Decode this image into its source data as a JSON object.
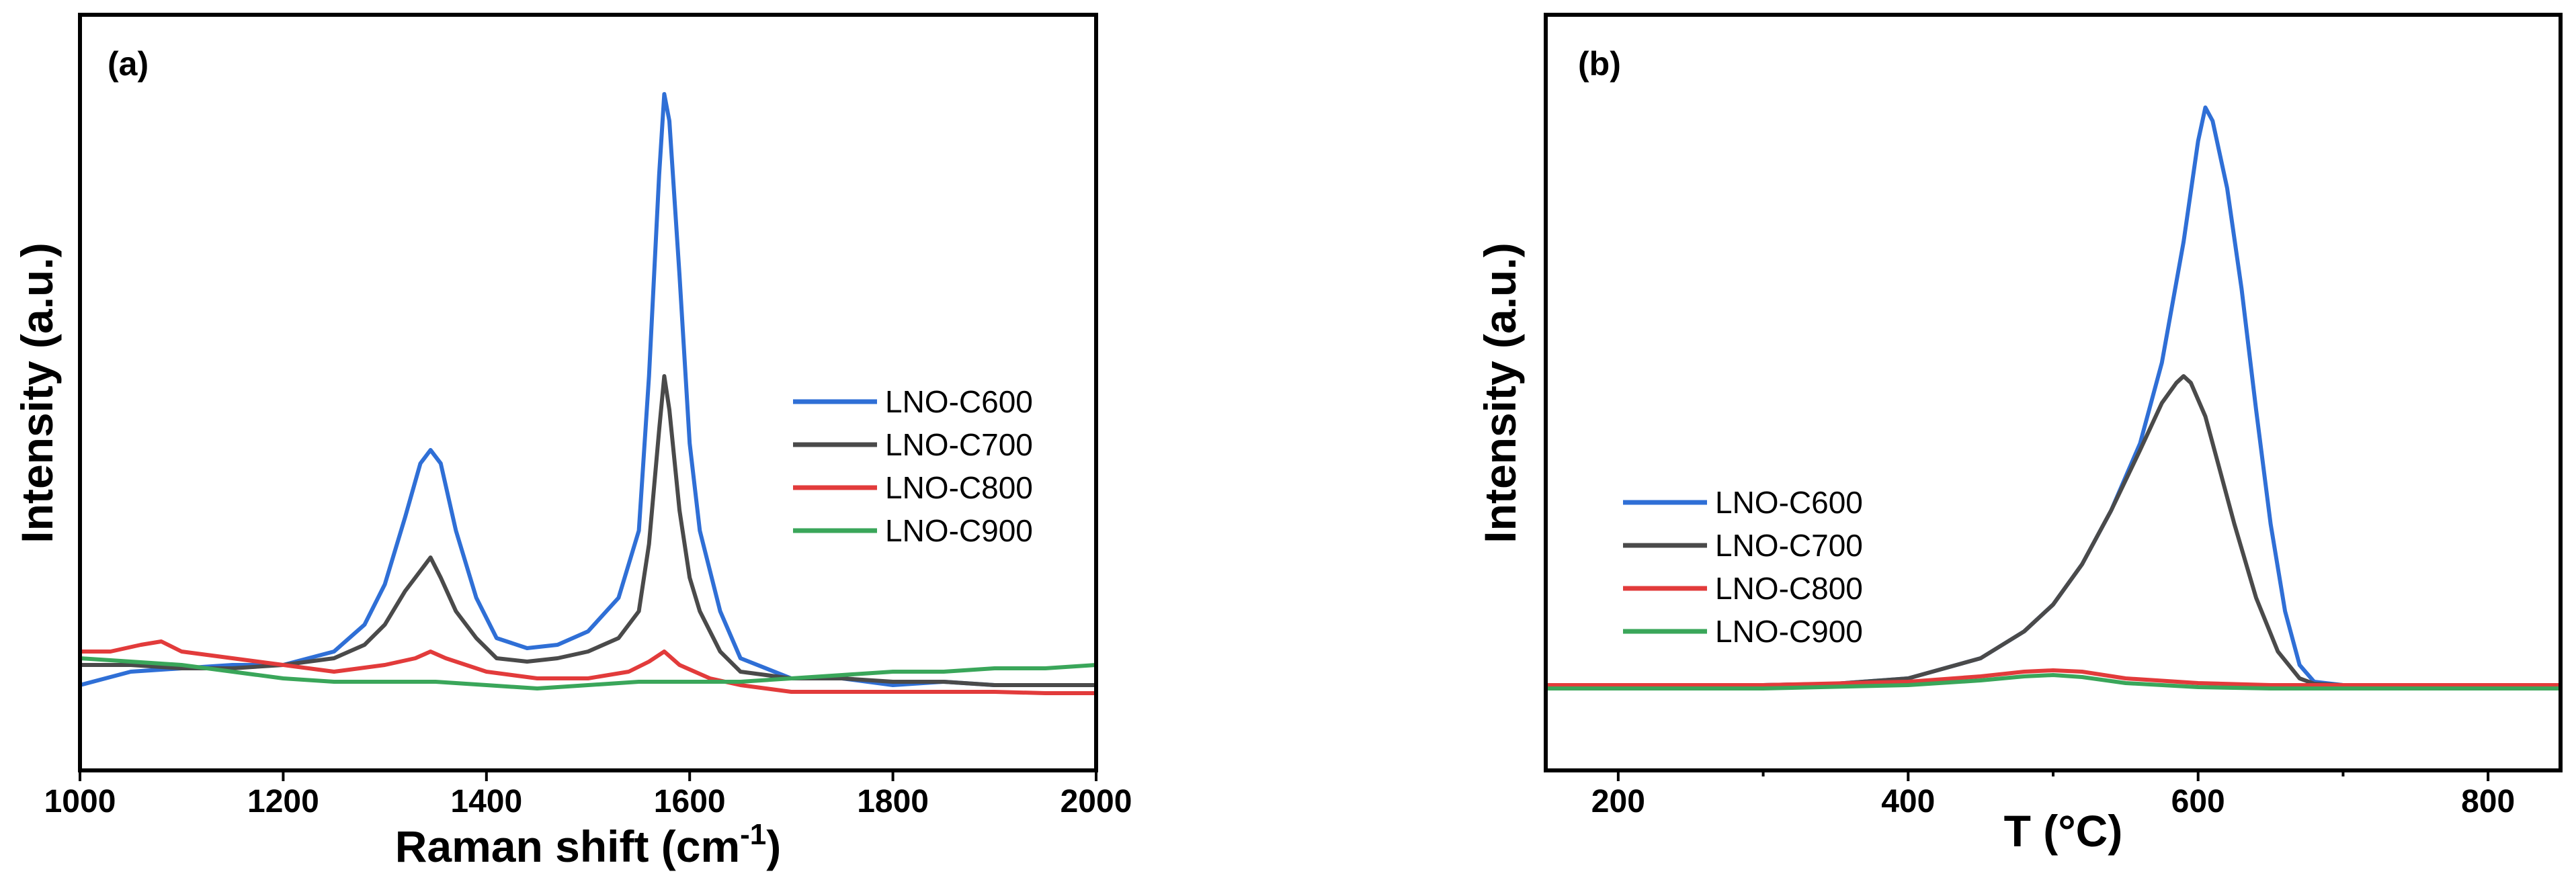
{
  "chart_data": [
    {
      "type": "line",
      "panel_label": "(a)",
      "xlabel": "Raman shift (cm",
      "xlabel_sup": "-1",
      "xlabel_close": ")",
      "ylabel": "Intensity (a.u.)",
      "xlim": [
        1000,
        2000
      ],
      "ylim": [
        0,
        1
      ],
      "xticks": [
        1000,
        1200,
        1400,
        1600,
        1800,
        2000
      ],
      "y_ticks_shown": false,
      "legend_position": "center-right",
      "series": [
        {
          "name": "LNO-C600",
          "color": "#2f6fd6",
          "x": [
            1000,
            1050,
            1100,
            1150,
            1200,
            1250,
            1280,
            1300,
            1320,
            1335,
            1345,
            1355,
            1370,
            1390,
            1410,
            1440,
            1470,
            1500,
            1530,
            1550,
            1560,
            1570,
            1575,
            1580,
            1590,
            1600,
            1610,
            1630,
            1650,
            1700,
            1750,
            1800,
            1850,
            1900,
            1950,
            2000
          ],
          "y": [
            0.09,
            0.11,
            0.115,
            0.12,
            0.12,
            0.14,
            0.18,
            0.24,
            0.34,
            0.42,
            0.44,
            0.42,
            0.32,
            0.22,
            0.16,
            0.145,
            0.15,
            0.17,
            0.22,
            0.32,
            0.55,
            0.85,
            0.97,
            0.93,
            0.7,
            0.45,
            0.32,
            0.2,
            0.13,
            0.1,
            0.1,
            0.09,
            0.095,
            0.09,
            0.09,
            0.09
          ]
        },
        {
          "name": "LNO-C700",
          "color": "#4a4a4a",
          "x": [
            1000,
            1050,
            1100,
            1150,
            1200,
            1250,
            1280,
            1300,
            1320,
            1335,
            1345,
            1355,
            1370,
            1390,
            1410,
            1440,
            1470,
            1500,
            1530,
            1550,
            1560,
            1570,
            1575,
            1580,
            1590,
            1600,
            1610,
            1630,
            1650,
            1700,
            1750,
            1800,
            1850,
            1900,
            1950,
            2000
          ],
          "y": [
            0.12,
            0.12,
            0.115,
            0.115,
            0.12,
            0.13,
            0.15,
            0.18,
            0.23,
            0.26,
            0.28,
            0.25,
            0.2,
            0.16,
            0.13,
            0.125,
            0.13,
            0.14,
            0.16,
            0.2,
            0.3,
            0.47,
            0.55,
            0.5,
            0.35,
            0.25,
            0.2,
            0.14,
            0.11,
            0.1,
            0.1,
            0.095,
            0.095,
            0.09,
            0.09,
            0.09
          ]
        },
        {
          "name": "LNO-C800",
          "color": "#e23b3b",
          "x": [
            1000,
            1030,
            1060,
            1080,
            1100,
            1150,
            1200,
            1250,
            1300,
            1330,
            1345,
            1360,
            1400,
            1450,
            1500,
            1540,
            1560,
            1575,
            1590,
            1620,
            1650,
            1700,
            1750,
            1800,
            1850,
            1900,
            1950,
            2000
          ],
          "y": [
            0.14,
            0.14,
            0.15,
            0.155,
            0.14,
            0.13,
            0.12,
            0.11,
            0.12,
            0.13,
            0.14,
            0.13,
            0.11,
            0.1,
            0.1,
            0.11,
            0.125,
            0.14,
            0.12,
            0.1,
            0.09,
            0.08,
            0.08,
            0.08,
            0.08,
            0.08,
            0.078,
            0.078
          ]
        },
        {
          "name": "LNO-C900",
          "color": "#3aa65a",
          "x": [
            1000,
            1050,
            1100,
            1150,
            1200,
            1250,
            1300,
            1350,
            1400,
            1450,
            1500,
            1550,
            1600,
            1650,
            1700,
            1750,
            1800,
            1850,
            1900,
            1950,
            2000
          ],
          "y": [
            0.13,
            0.125,
            0.12,
            0.11,
            0.1,
            0.095,
            0.095,
            0.095,
            0.09,
            0.085,
            0.09,
            0.095,
            0.095,
            0.095,
            0.1,
            0.105,
            0.11,
            0.11,
            0.115,
            0.115,
            0.12
          ]
        }
      ]
    },
    {
      "type": "line",
      "panel_label": "(b)",
      "xlabel": "T (°C)",
      "ylabel": "Intensity (a.u.)",
      "xlim": [
        150,
        850
      ],
      "ylim": [
        0,
        1
      ],
      "xticks": [
        200,
        400,
        600,
        800
      ],
      "x_minor_ticks": [
        300,
        500,
        700
      ],
      "y_ticks_shown": false,
      "legend_position": "lower-left",
      "series": [
        {
          "name": "LNO-C600",
          "color": "#2f6fd6",
          "x": [
            150,
            200,
            300,
            350,
            400,
            450,
            480,
            500,
            520,
            540,
            560,
            575,
            590,
            600,
            605,
            610,
            620,
            630,
            640,
            650,
            660,
            670,
            680,
            700,
            750,
            800,
            850
          ],
          "y": [
            0.09,
            0.09,
            0.09,
            0.092,
            0.1,
            0.13,
            0.17,
            0.21,
            0.27,
            0.35,
            0.45,
            0.57,
            0.75,
            0.9,
            0.95,
            0.93,
            0.83,
            0.68,
            0.5,
            0.33,
            0.2,
            0.12,
            0.095,
            0.09,
            0.09,
            0.09,
            0.09
          ]
        },
        {
          "name": "LNO-C700",
          "color": "#4a4a4a",
          "x": [
            150,
            200,
            300,
            350,
            400,
            450,
            480,
            500,
            520,
            540,
            560,
            575,
            585,
            590,
            595,
            605,
            615,
            625,
            640,
            655,
            670,
            680,
            700,
            750,
            800,
            850
          ],
          "y": [
            0.09,
            0.09,
            0.09,
            0.092,
            0.1,
            0.13,
            0.17,
            0.21,
            0.27,
            0.35,
            0.44,
            0.51,
            0.54,
            0.55,
            0.54,
            0.49,
            0.41,
            0.33,
            0.22,
            0.14,
            0.1,
            0.092,
            0.09,
            0.09,
            0.09,
            0.09
          ]
        },
        {
          "name": "LNO-C800",
          "color": "#e23b3b",
          "x": [
            150,
            200,
            300,
            400,
            450,
            480,
            500,
            520,
            550,
            600,
            650,
            700,
            850
          ],
          "y": [
            0.09,
            0.09,
            0.09,
            0.095,
            0.103,
            0.11,
            0.112,
            0.11,
            0.1,
            0.093,
            0.09,
            0.09,
            0.09
          ]
        },
        {
          "name": "LNO-C900",
          "color": "#3aa65a",
          "x": [
            150,
            200,
            300,
            400,
            450,
            480,
            500,
            520,
            550,
            600,
            650,
            700,
            850
          ],
          "y": [
            0.085,
            0.085,
            0.085,
            0.09,
            0.097,
            0.103,
            0.105,
            0.102,
            0.093,
            0.087,
            0.085,
            0.085,
            0.085
          ]
        }
      ]
    }
  ]
}
